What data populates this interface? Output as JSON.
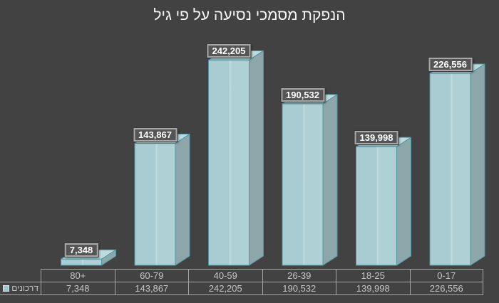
{
  "title": "הנפקת מסמכי נסיעה על פי גיל",
  "legend": {
    "label": "דרכונים"
  },
  "colors": {
    "background": "#424242",
    "title_text": "#f7f7f7",
    "bar_front": "#a9ccd2",
    "bar_front_highlight": "#c3dde0",
    "bar_front_right": "#afd0d5",
    "bar_top": "#bcdbde",
    "bar_side": "#8da6a9",
    "bar_edge": "#4f96a2",
    "label_box_bg": "#555555",
    "label_box_border": "#a8a8a8",
    "table_line": "#a6a6a6",
    "table_text": "#c6c6c6",
    "legend_marker": "#9dc6cc"
  },
  "chart_data": {
    "type": "bar",
    "style": "3d",
    "title": "הנפקת מסמכי נסיעה על פי גיל",
    "categories": [
      "80+",
      "60-79",
      "40-59",
      "26-39",
      "18-25",
      "0-17"
    ],
    "series": [
      {
        "name": "דרכונים",
        "values": [
          7348,
          143867,
          242205,
          190532,
          139998,
          226556
        ]
      }
    ],
    "data_labels": [
      "7,348",
      "143,867",
      "242,205",
      "190,532",
      "139,998",
      "226,556"
    ],
    "xlabel": "",
    "ylabel": "",
    "ylim": [
      0,
      260000
    ],
    "grid": false,
    "legend_position": "bottom-left",
    "value_table_shown": true
  }
}
